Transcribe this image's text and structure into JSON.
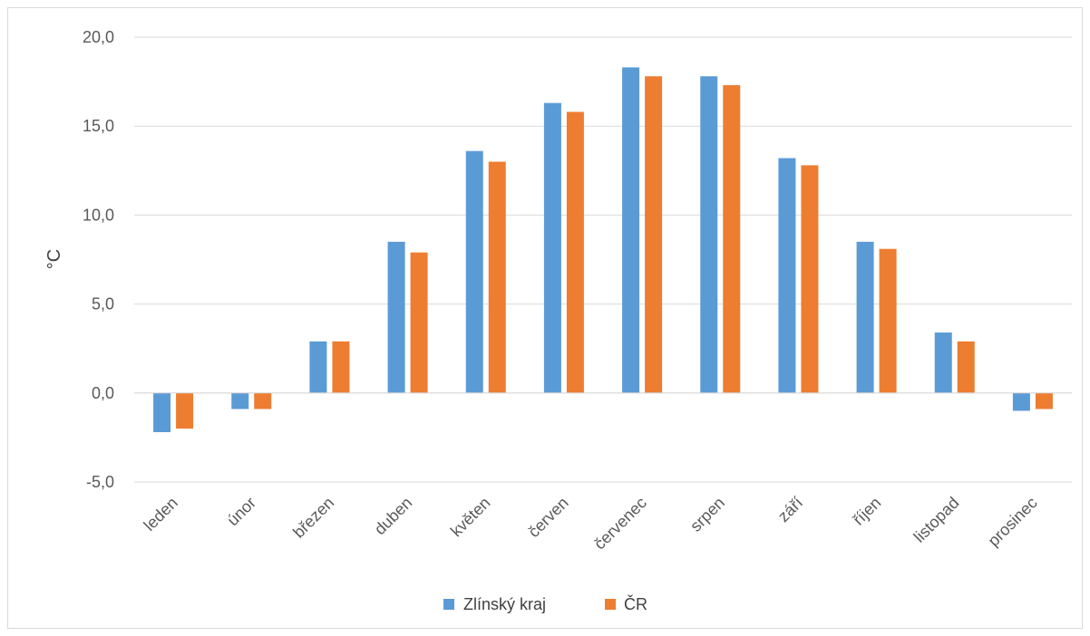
{
  "chart_data": {
    "type": "bar",
    "title": "",
    "xlabel": "",
    "ylabel": "°C",
    "ylim": [
      -5,
      20
    ],
    "yticks": [
      -5,
      0,
      5,
      10,
      15,
      20
    ],
    "ytick_labels": [
      "-5,0",
      "0,0",
      "5,0",
      "10,0",
      "15,0",
      "20,0"
    ],
    "grid": true,
    "legend_position": "bottom",
    "categories": [
      "leden",
      "únor",
      "březen",
      "duben",
      "květen",
      "červen",
      "červenec",
      "srpen",
      "září",
      "říjen",
      "listopad",
      "prosinec"
    ],
    "series": [
      {
        "name": "Zlínský kraj",
        "color": "#5b9bd5",
        "values": [
          -2.2,
          -0.9,
          2.9,
          8.5,
          13.6,
          16.3,
          18.3,
          17.8,
          13.2,
          8.5,
          3.4,
          -1.0
        ]
      },
      {
        "name": "ČR",
        "color": "#ed7d31",
        "values": [
          -2.0,
          -0.9,
          2.9,
          7.9,
          13.0,
          15.8,
          17.8,
          17.3,
          12.8,
          8.1,
          2.9,
          -0.9
        ]
      }
    ]
  }
}
